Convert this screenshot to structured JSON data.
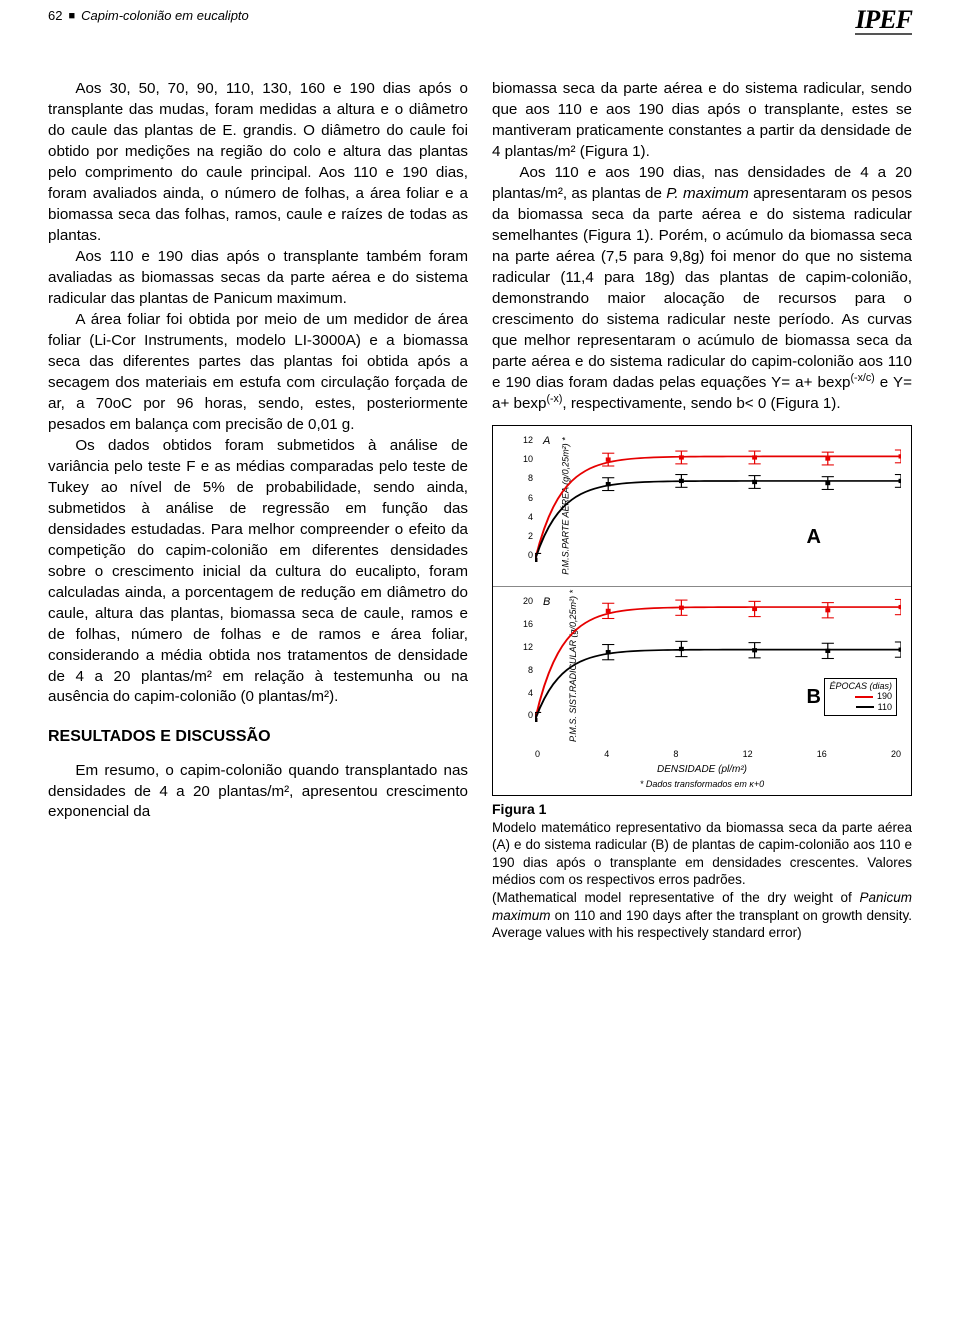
{
  "header": {
    "page_number": "62",
    "running_title": "Capim-colonião em eucalipto",
    "logo_text": "IPEF"
  },
  "left_column": {
    "p1": "Aos 30, 50, 70, 90, 110, 130, 160 e 190 dias após o transplante das mudas, foram medidas a altura e o diâmetro do caule das plantas de E. grandis. O diâmetro do caule foi obtido por medições na região do colo e altura das plantas pelo comprimento do caule principal. Aos 110 e 190 dias, foram avaliados ainda, o número de folhas, a área foliar e a biomassa seca das folhas, ramos, caule e raízes de todas as plantas.",
    "p2": "Aos 110 e 190 dias após o transplante também foram avaliadas as biomassas secas da parte aérea e do sistema radicular das plantas de Panicum maximum.",
    "p3": "A área foliar foi obtida por meio de um medidor de área foliar (Li-Cor Instruments, modelo LI-3000A) e a biomassa seca das diferentes partes das plantas foi obtida após a secagem dos materiais em estufa com circulação forçada de ar, a 70oC por 96 horas, sendo, estes, posteriormente pesados em balança com precisão de 0,01 g.",
    "p4": "Os dados obtidos foram submetidos à análise de variância pelo teste F e as médias comparadas pelo teste de Tukey ao nível de 5% de probabilidade, sendo ainda, submetidos à análise de regressão em função das densidades estudadas. Para melhor compreender o efeito da competição do capim-colonião em diferentes densidades sobre o crescimento inicial da cultura do eucalipto, foram calculadas ainda, a porcentagem de redução em diâmetro do caule, altura das plantas, biomassa seca de caule, ramos e de folhas, número de folhas e de ramos e área foliar, considerando a média obtida nos tratamentos de densidade de 4 a 20 plantas/m² em relação à testemunha ou na ausência do capim-colonião (0 plantas/m²).",
    "section_heading": "RESULTADOS E DISCUSSÃO",
    "p5": "Em resumo, o capim-colonião quando transplantado nas densidades de 4 a 20 plantas/m², apresentou crescimento exponencial da"
  },
  "right_column": {
    "p1": "biomassa seca da parte aérea e do sistema radicular, sendo que aos 110 e aos 190 dias após o transplante, estes se mantiveram praticamente constantes a partir da densidade de 4 plantas/m² (Figura 1).",
    "p2a": "Aos 110 e aos 190 dias, nas densidades de 4 a 20 plantas/m², as plantas de ",
    "p2_species": "P. maximum",
    "p2b": " apresentaram os pesos da biomassa seca da parte aérea e do sistema radicular semelhantes (Figura 1). Porém, o acúmulo da biomassa seca na parte aérea (7,5 para 9,8g) foi menor do que no sistema radicular (11,4 para 18g) das plantas de capim-colonião, demonstrando maior alocação de recursos para o crescimento do sistema radicular neste período. As curvas que melhor representaram o acúmulo de biomassa seca da parte aérea e do sistema radicular do capim-colonião aos 110 e 190 dias foram dadas pelas equações Y= a+ bexp",
    "p2_sup1": "(-x/c)",
    "p2c": " e Y= a+ bexp",
    "p2_sup2": "(-x)",
    "p2d": ", respectivamente, sendo b< 0 (Figura 1)."
  },
  "figure": {
    "panel_a": {
      "label": "A",
      "big_letter": "A",
      "ylabel": "P.M.S.PARTE AÉREA (g/0,25m²) *",
      "yticks": [
        "12",
        "10",
        "8",
        "6",
        "4",
        "2",
        "0"
      ],
      "series_190": {
        "color": "#e60000",
        "x": [
          0,
          4,
          8,
          12,
          16,
          20
        ],
        "y": [
          0.2,
          9.6,
          9.8,
          9.8,
          9.7,
          9.9
        ]
      },
      "series_110": {
        "color": "#000000",
        "x": [
          0,
          4,
          8,
          12,
          16,
          20
        ],
        "y": [
          0.2,
          7.3,
          7.6,
          7.5,
          7.4,
          7.6
        ]
      }
    },
    "panel_b": {
      "label": "B",
      "big_letter": "B",
      "ylabel": "P.M.S. SIST.RADICULAR (g/0,25m²) *",
      "yticks": [
        "20",
        "16",
        "12",
        "8",
        "4",
        "0"
      ],
      "series_190": {
        "color": "#e60000",
        "x": [
          0,
          4,
          8,
          12,
          16,
          20
        ],
        "y": [
          0.3,
          17.5,
          18.0,
          17.8,
          17.6,
          18.1
        ]
      },
      "series_110": {
        "color": "#000000",
        "x": [
          0,
          4,
          8,
          12,
          16,
          20
        ],
        "y": [
          0.3,
          11.0,
          11.5,
          11.3,
          11.2,
          11.4
        ]
      }
    },
    "xticks": [
      "0",
      "4",
      "8",
      "12",
      "16",
      "20"
    ],
    "xlabel": "DENSIDADE (pl/m²)",
    "footnote": "* Dados transformados em  κ+0",
    "legend": {
      "title": "ÉPOCAS (dias)",
      "items": [
        {
          "label": "190",
          "color": "#e60000"
        },
        {
          "label": "110",
          "color": "#000000"
        }
      ]
    },
    "title": "Figura 1",
    "caption_pt": "Modelo matemático representativo da biomassa seca da parte aérea (A) e do sistema radicular (B) de plantas de capim-colonião aos 110 e 190 dias após o transplante em densidades crescentes. Valores médios com os respectivos erros padrões.",
    "caption_en_a": "(Mathematical model representative of the dry weight of ",
    "caption_en_species": "Panicum maximum",
    "caption_en_b": " on 110 and 190 days after the transplant on growth density. Average values with his respectively standard error)"
  },
  "chart_style": {
    "line_width": 1.6,
    "marker_size": 4,
    "error_bar_half_height_A": 0.6,
    "error_bar_half_height_B": 1.2,
    "error_cap_width": 5,
    "background_color": "#ffffff",
    "plot_border_color": "#000000",
    "tick_font_size": 9,
    "label_font_size": 9
  }
}
